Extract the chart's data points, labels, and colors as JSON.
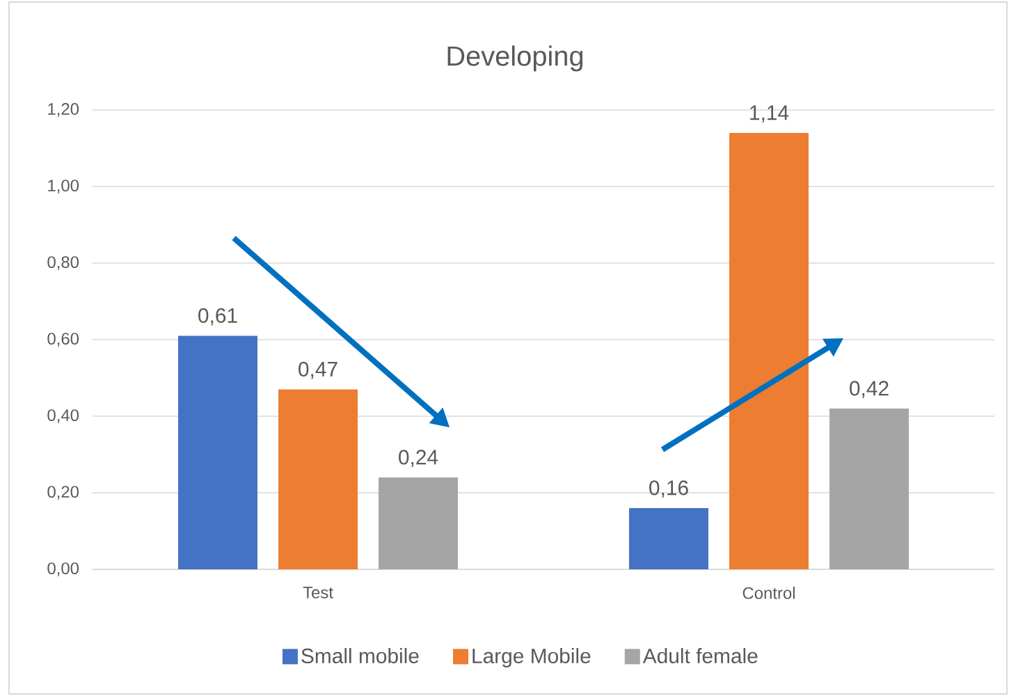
{
  "chart_data": {
    "type": "bar",
    "title": "Developing",
    "categories": [
      "Test",
      "Control"
    ],
    "series": [
      {
        "name": "Small mobile",
        "color": "#4472c4",
        "values": [
          0.61,
          0.16
        ],
        "value_labels": [
          "0,61",
          "0,16"
        ]
      },
      {
        "name": "Large Mobile",
        "color": "#ed7d31",
        "values": [
          0.47,
          1.14
        ],
        "value_labels": [
          "0,47",
          "1,14"
        ]
      },
      {
        "name": "Adult female",
        "color": "#a5a5a5",
        "values": [
          0.24,
          0.42
        ],
        "value_labels": [
          "0,24",
          "0,42"
        ]
      }
    ],
    "ylim": [
      0,
      1.2
    ],
    "yticks": [
      {
        "value": 0,
        "label": "0,00"
      },
      {
        "value": 0.2,
        "label": "0,20"
      },
      {
        "value": 0.4,
        "label": "0,40"
      },
      {
        "value": 0.6,
        "label": "0,60"
      },
      {
        "value": 0.8,
        "label": "0,80"
      },
      {
        "value": 1,
        "label": "1,00"
      },
      {
        "value": 1.2,
        "label": "1,20"
      }
    ],
    "grid": "y",
    "legend": "bottom"
  }
}
